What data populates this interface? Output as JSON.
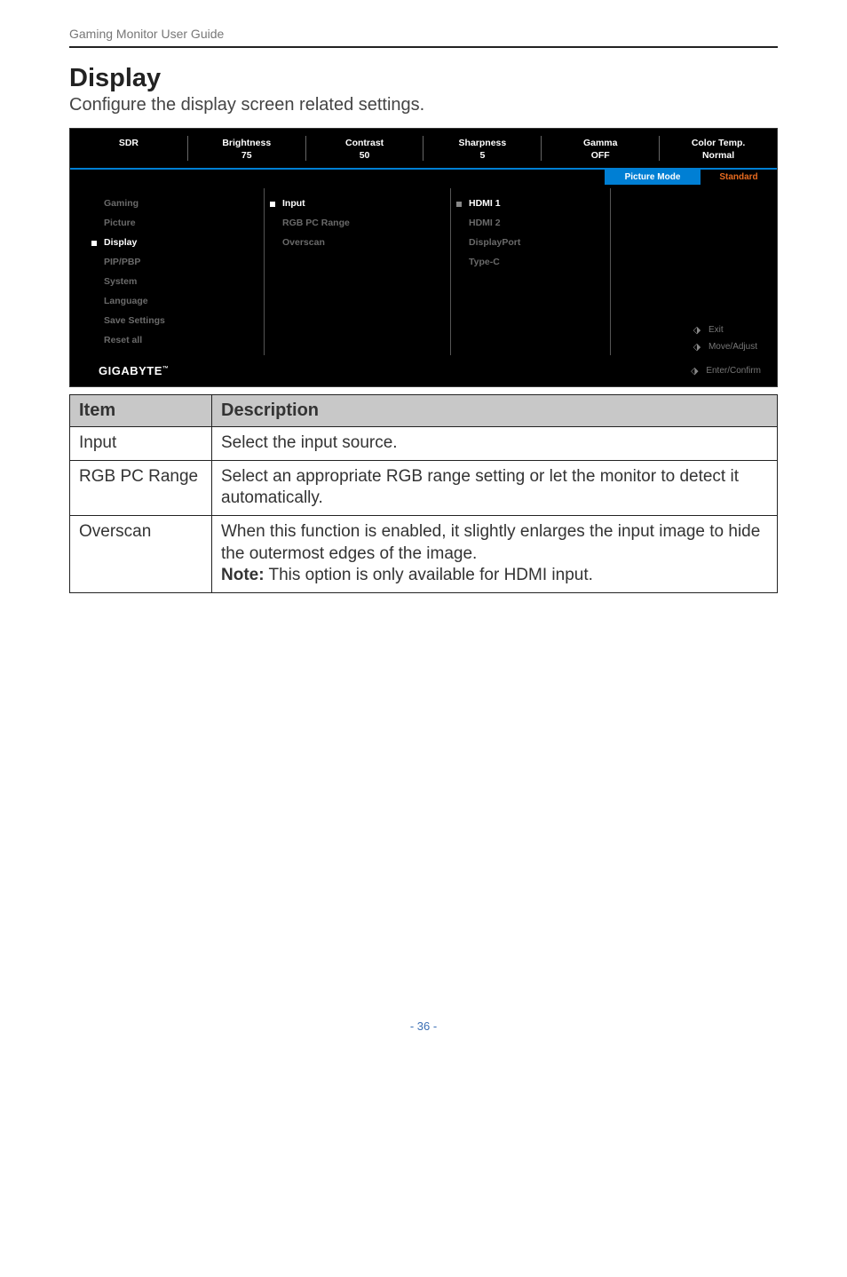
{
  "header": {
    "guide_title": "Gaming Monitor User Guide"
  },
  "section": {
    "title": "Display",
    "subtitle": "Configure the display screen related settings."
  },
  "osd": {
    "top": [
      {
        "label": "SDR",
        "value": ""
      },
      {
        "label": "Brightness",
        "value": "75"
      },
      {
        "label": "Contrast",
        "value": "50"
      },
      {
        "label": "Sharpness",
        "value": "5"
      },
      {
        "label": "Gamma",
        "value": "OFF"
      },
      {
        "label": "Color Temp.",
        "value": "Normal"
      }
    ],
    "band": {
      "tab": "Picture Mode",
      "value": "Standard"
    },
    "menu": [
      {
        "label": "Gaming",
        "active": false
      },
      {
        "label": "Picture",
        "active": false
      },
      {
        "label": "Display",
        "active": true
      },
      {
        "label": "PIP/PBP",
        "active": false
      },
      {
        "label": "System",
        "active": false
      },
      {
        "label": "Language",
        "active": false
      },
      {
        "label": "Save Settings",
        "active": false
      },
      {
        "label": "Reset all",
        "active": false
      }
    ],
    "sub1": [
      {
        "label": "Input",
        "active": true
      },
      {
        "label": "RGB PC Range",
        "active": false
      },
      {
        "label": "Overscan",
        "active": false
      }
    ],
    "sub2": [
      {
        "label": "HDMI 1",
        "active": true
      },
      {
        "label": "HDMI 2",
        "active": false
      },
      {
        "label": "DisplayPort",
        "active": false
      },
      {
        "label": "Type-C",
        "active": false
      }
    ],
    "hints": {
      "exit": "Exit",
      "move": "Move/Adjust",
      "enter": "Enter/Confirm"
    },
    "brand": "GIGABYTE"
  },
  "table": {
    "headers": {
      "item": "Item",
      "desc": "Description"
    },
    "rows": [
      {
        "item": "Input",
        "desc": "Select the input source."
      },
      {
        "item": "RGB PC Range",
        "desc": "Select an appropriate RGB range setting or let the monitor to detect it automatically."
      },
      {
        "item": "Overscan",
        "desc_main": "When this function is enabled, it slightly enlarges the input image to hide the outermost edges of the image.",
        "note_label": "Note:",
        "note_text": " This option is only available for HDMI input."
      }
    ]
  },
  "page_number": "- 36 -",
  "colors": {
    "accent_blue": "#007fd4",
    "accent_orange": "#e66a1f",
    "osd_bg": "#000000",
    "dim_text": "#6a6a6a",
    "table_header_bg": "#c8c8c8",
    "page_num_color": "#3b6fb4"
  }
}
